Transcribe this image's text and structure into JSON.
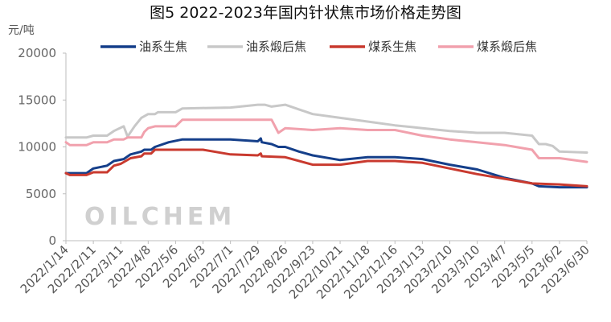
{
  "chart_data": {
    "type": "line",
    "title": "图5 2022-2023年国内针状焦市场价格走势图",
    "ylabel": "元/吨",
    "ylim": [
      0,
      20000
    ],
    "yticks": [
      0,
      5000,
      10000,
      15000,
      20000
    ],
    "grid": false,
    "legend_position": "top",
    "watermark": "OILCHEM",
    "xticks": [
      "2022/1/14",
      "2022/2/11",
      "2022/3/11",
      "2022/4/8",
      "2022/5/6",
      "2022/6/3",
      "2022/7/1",
      "2022/7/29",
      "2022/8/26",
      "2022/9/23",
      "2022/10/21",
      "2022/11/18",
      "2022/12/16",
      "2023/1/13",
      "2023/2/10",
      "2023/3/10",
      "2023/4/7",
      "2023/5/5",
      "2023/6/2",
      "2023/6/30"
    ],
    "series": [
      {
        "name": "油系生焦",
        "color": "#153f8a",
        "points": [
          [
            "2022/1/14",
            7200
          ],
          [
            "2022/2/4",
            7200
          ],
          [
            "2022/2/11",
            7700
          ],
          [
            "2022/2/25",
            8000
          ],
          [
            "2022/3/4",
            8500
          ],
          [
            "2022/3/14",
            8700
          ],
          [
            "2022/3/21",
            9200
          ],
          [
            "2022/4/1",
            9500
          ],
          [
            "2022/4/4",
            9700
          ],
          [
            "2022/4/11",
            9700
          ],
          [
            "2022/4/15",
            10000
          ],
          [
            "2022/4/29",
            10500
          ],
          [
            "2022/5/13",
            10800
          ],
          [
            "2022/7/1",
            10800
          ],
          [
            "2022/7/29",
            10600
          ],
          [
            "2022/8/1",
            10900
          ],
          [
            "2022/8/2",
            10500
          ],
          [
            "2022/8/12",
            10300
          ],
          [
            "2022/8/19",
            10000
          ],
          [
            "2022/8/26",
            10000
          ],
          [
            "2022/9/9",
            9500
          ],
          [
            "2022/9/23",
            9100
          ],
          [
            "2022/10/21",
            8600
          ],
          [
            "2022/11/18",
            8900
          ],
          [
            "2022/12/16",
            8900
          ],
          [
            "2023/1/13",
            8700
          ],
          [
            "2023/2/10",
            8100
          ],
          [
            "2023/3/10",
            7600
          ],
          [
            "2023/4/7",
            6700
          ],
          [
            "2023/5/5",
            6100
          ],
          [
            "2023/5/12",
            5800
          ],
          [
            "2023/6/2",
            5700
          ],
          [
            "2023/6/30",
            5700
          ]
        ]
      },
      {
        "name": "油系煅后焦",
        "color": "#c8c8c8",
        "points": [
          [
            "2022/1/14",
            11000
          ],
          [
            "2022/2/4",
            11000
          ],
          [
            "2022/2/11",
            11200
          ],
          [
            "2022/2/25",
            11200
          ],
          [
            "2022/3/4",
            11700
          ],
          [
            "2022/3/14",
            12200
          ],
          [
            "2022/3/18",
            11100
          ],
          [
            "2022/3/25",
            12200
          ],
          [
            "2022/4/1",
            13100
          ],
          [
            "2022/4/8",
            13500
          ],
          [
            "2022/4/15",
            13500
          ],
          [
            "2022/4/18",
            13700
          ],
          [
            "2022/5/6",
            13700
          ],
          [
            "2022/5/13",
            14100
          ],
          [
            "2022/7/1",
            14200
          ],
          [
            "2022/7/29",
            14500
          ],
          [
            "2022/8/5",
            14500
          ],
          [
            "2022/8/12",
            14300
          ],
          [
            "2022/8/26",
            14500
          ],
          [
            "2022/9/9",
            14000
          ],
          [
            "2022/9/23",
            13500
          ],
          [
            "2022/10/21",
            13100
          ],
          [
            "2022/11/18",
            12700
          ],
          [
            "2022/12/16",
            12300
          ],
          [
            "2023/1/13",
            12000
          ],
          [
            "2023/2/10",
            11700
          ],
          [
            "2023/3/10",
            11500
          ],
          [
            "2023/4/7",
            11500
          ],
          [
            "2023/5/5",
            11200
          ],
          [
            "2023/5/12",
            10300
          ],
          [
            "2023/5/19",
            10300
          ],
          [
            "2023/5/26",
            10100
          ],
          [
            "2023/6/2",
            9500
          ],
          [
            "2023/6/30",
            9400
          ]
        ]
      },
      {
        "name": "煤系生焦",
        "color": "#c93a2f",
        "points": [
          [
            "2022/1/14",
            7200
          ],
          [
            "2022/1/18",
            7000
          ],
          [
            "2022/2/4",
            7000
          ],
          [
            "2022/2/11",
            7300
          ],
          [
            "2022/2/25",
            7300
          ],
          [
            "2022/3/4",
            8000
          ],
          [
            "2022/3/11",
            8200
          ],
          [
            "2022/3/21",
            8800
          ],
          [
            "2022/4/1",
            9000
          ],
          [
            "2022/4/4",
            9300
          ],
          [
            "2022/4/11",
            9300
          ],
          [
            "2022/4/15",
            9700
          ],
          [
            "2022/4/22",
            9700
          ],
          [
            "2022/5/6",
            9700
          ],
          [
            "2022/6/3",
            9700
          ],
          [
            "2022/7/1",
            9200
          ],
          [
            "2022/7/29",
            9100
          ],
          [
            "2022/8/1",
            9300
          ],
          [
            "2022/8/2",
            9000
          ],
          [
            "2022/8/26",
            8900
          ],
          [
            "2022/9/23",
            8100
          ],
          [
            "2022/10/21",
            8100
          ],
          [
            "2022/11/18",
            8500
          ],
          [
            "2022/12/16",
            8500
          ],
          [
            "2023/1/13",
            8300
          ],
          [
            "2023/2/10",
            7700
          ],
          [
            "2023/3/10",
            7100
          ],
          [
            "2023/4/7",
            6600
          ],
          [
            "2023/5/5",
            6100
          ],
          [
            "2023/6/2",
            6000
          ],
          [
            "2023/6/30",
            5800
          ]
        ]
      },
      {
        "name": "煤系煅后焦",
        "color": "#f1a1ad",
        "points": [
          [
            "2022/1/14",
            10500
          ],
          [
            "2022/1/18",
            10200
          ],
          [
            "2022/2/4",
            10200
          ],
          [
            "2022/2/11",
            10500
          ],
          [
            "2022/2/25",
            10500
          ],
          [
            "2022/3/4",
            10800
          ],
          [
            "2022/3/14",
            10800
          ],
          [
            "2022/3/18",
            11000
          ],
          [
            "2022/3/21",
            11000
          ],
          [
            "2022/4/1",
            11000
          ],
          [
            "2022/4/4",
            11600
          ],
          [
            "2022/4/8",
            12000
          ],
          [
            "2022/4/15",
            12200
          ],
          [
            "2022/5/6",
            12200
          ],
          [
            "2022/5/13",
            12900
          ],
          [
            "2022/7/1",
            12900
          ],
          [
            "2022/7/29",
            12900
          ],
          [
            "2022/8/12",
            12900
          ],
          [
            "2022/8/19",
            11500
          ],
          [
            "2022/8/26",
            12000
          ],
          [
            "2022/9/23",
            11800
          ],
          [
            "2022/10/21",
            12000
          ],
          [
            "2022/11/18",
            11800
          ],
          [
            "2022/12/16",
            11800
          ],
          [
            "2023/1/13",
            11200
          ],
          [
            "2023/2/10",
            10800
          ],
          [
            "2023/3/10",
            10500
          ],
          [
            "2023/4/7",
            10200
          ],
          [
            "2023/5/5",
            9700
          ],
          [
            "2023/5/12",
            8800
          ],
          [
            "2023/6/2",
            8800
          ],
          [
            "2023/6/30",
            8400
          ]
        ]
      }
    ]
  }
}
